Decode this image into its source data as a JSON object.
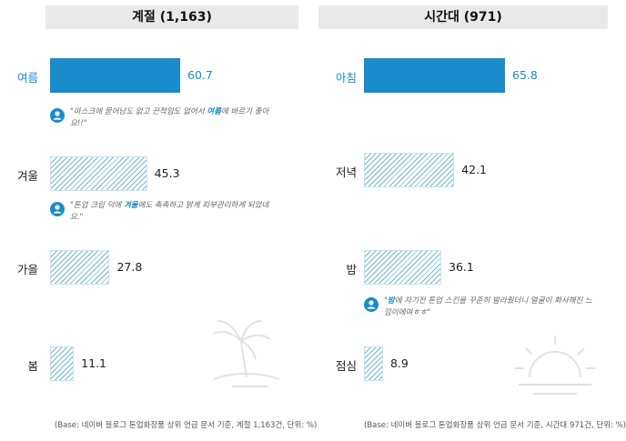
{
  "chart_data": [
    {
      "type": "bar",
      "orientation": "horizontal",
      "title": "계절 (1,163)",
      "categories": [
        "여름",
        "겨울",
        "가을",
        "봄"
      ],
      "values": [
        60.7,
        45.3,
        27.8,
        11.1
      ],
      "highlight": "여름",
      "quotes": [
        {
          "after": "여름",
          "pre": "\"마스크에 묻어남도 없고 끈적임도 없어서 ",
          "em": "여름",
          "post": "에 바르기 좋아요!!\""
        },
        {
          "after": "겨울",
          "pre": "\"톤업 크림 덕에 ",
          "em": "겨울",
          "post": "에도 촉촉하고 밝게 피부관리하게 되었네요.\""
        }
      ],
      "source": "(Base: 네이버 블로그 톤업화장품 상위 언급 문서 기준, 계절 1,163건, 단위: %)"
    },
    {
      "type": "bar",
      "orientation": "horizontal",
      "title": "시간대 (971)",
      "categories": [
        "아침",
        "저녁",
        "밤",
        "점심"
      ],
      "values": [
        65.8,
        42.1,
        36.1,
        8.9
      ],
      "highlight": "아침",
      "quotes": [
        {
          "after": "밤",
          "pre": "\"",
          "em": "밤",
          "post": "에 자기전 톤업 스킨을 꾸준히 발라줬더니 얼굴이 화사해진 느낌이에여ㅎㅎ\""
        }
      ],
      "source": "(Base: 네이버 블로그 톤업화장품 상위 언급 문서 기준, 시간대 971건, 단위: %)"
    }
  ],
  "colors": {
    "accent": "#1a8ccc",
    "hatch": "#6fb6d8",
    "header_bg": "#e9e9e9"
  },
  "icons": {
    "quote": "person-icon",
    "left_deco": "palm-tree-icon",
    "right_deco": "sunrise-icon"
  }
}
